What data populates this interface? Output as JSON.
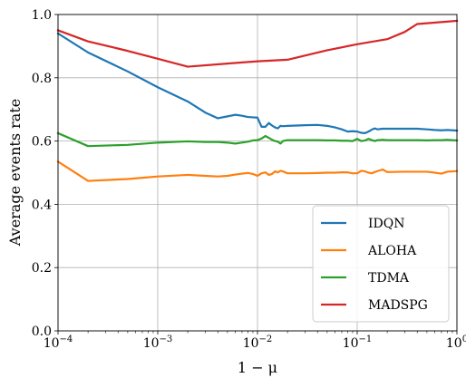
{
  "chart_data": {
    "type": "line",
    "xlabel": "1 − μ",
    "ylabel": "Average events rate",
    "xscale": "log",
    "xlim": [
      0.0001,
      1
    ],
    "ylim": [
      0.0,
      1.0
    ],
    "grid": true,
    "legend_position": "lower-right",
    "x_ticks": [
      {
        "value": 0.0001,
        "base": "10",
        "exp": "−4"
      },
      {
        "value": 0.001,
        "base": "10",
        "exp": "−3"
      },
      {
        "value": 0.01,
        "base": "10",
        "exp": "−2"
      },
      {
        "value": 0.1,
        "base": "10",
        "exp": "−1"
      },
      {
        "value": 1,
        "base": "10",
        "exp": "0"
      }
    ],
    "y_ticks": [
      {
        "value": 0.0,
        "label": "0.0"
      },
      {
        "value": 0.2,
        "label": "0.2"
      },
      {
        "value": 0.4,
        "label": "0.4"
      },
      {
        "value": 0.6,
        "label": "0.6"
      },
      {
        "value": 0.8,
        "label": "0.8"
      },
      {
        "value": 1.0,
        "label": "1.0"
      }
    ],
    "series": [
      {
        "name": "IDQN",
        "color": "#1f77b4",
        "x": [
          0.0001,
          0.0002,
          0.0005,
          0.001,
          0.002,
          0.003,
          0.004,
          0.005,
          0.006,
          0.007,
          0.008,
          0.009,
          0.01,
          0.011,
          0.012,
          0.013,
          0.014,
          0.015,
          0.016,
          0.017,
          0.018,
          0.02,
          0.03,
          0.04,
          0.05,
          0.06,
          0.07,
          0.08,
          0.09,
          0.1,
          0.11,
          0.12,
          0.13,
          0.14,
          0.15,
          0.16,
          0.18,
          0.2,
          0.3,
          0.4,
          0.5,
          0.6,
          0.7,
          0.8,
          1.0
        ],
        "y": [
          0.94,
          0.88,
          0.82,
          0.77,
          0.725,
          0.69,
          0.672,
          0.678,
          0.683,
          0.68,
          0.676,
          0.675,
          0.674,
          0.645,
          0.645,
          0.657,
          0.649,
          0.643,
          0.64,
          0.648,
          0.647,
          0.648,
          0.65,
          0.651,
          0.648,
          0.643,
          0.637,
          0.63,
          0.631,
          0.63,
          0.626,
          0.625,
          0.63,
          0.636,
          0.64,
          0.637,
          0.639,
          0.639,
          0.639,
          0.639,
          0.637,
          0.635,
          0.634,
          0.635,
          0.633
        ]
      },
      {
        "name": "ALOHA",
        "color": "#ff7f0e",
        "x": [
          0.0001,
          0.0002,
          0.0005,
          0.001,
          0.002,
          0.003,
          0.004,
          0.005,
          0.006,
          0.007,
          0.008,
          0.009,
          0.01,
          0.011,
          0.012,
          0.013,
          0.014,
          0.015,
          0.016,
          0.017,
          0.018,
          0.02,
          0.03,
          0.04,
          0.05,
          0.06,
          0.07,
          0.08,
          0.09,
          0.1,
          0.11,
          0.12,
          0.13,
          0.14,
          0.15,
          0.16,
          0.18,
          0.2,
          0.3,
          0.4,
          0.5,
          0.6,
          0.7,
          0.8,
          1.0
        ],
        "y": [
          0.535,
          0.474,
          0.48,
          0.488,
          0.493,
          0.49,
          0.488,
          0.49,
          0.494,
          0.497,
          0.499,
          0.496,
          0.49,
          0.498,
          0.501,
          0.493,
          0.496,
          0.504,
          0.501,
          0.506,
          0.504,
          0.498,
          0.498,
          0.499,
          0.5,
          0.5,
          0.501,
          0.501,
          0.498,
          0.498,
          0.506,
          0.504,
          0.5,
          0.498,
          0.502,
          0.505,
          0.51,
          0.502,
          0.503,
          0.503,
          0.503,
          0.5,
          0.497,
          0.503,
          0.505
        ]
      },
      {
        "name": "TDMA",
        "color": "#2ca02c",
        "x": [
          0.0001,
          0.0002,
          0.0005,
          0.001,
          0.002,
          0.003,
          0.004,
          0.005,
          0.006,
          0.007,
          0.008,
          0.009,
          0.01,
          0.011,
          0.012,
          0.013,
          0.014,
          0.015,
          0.016,
          0.017,
          0.018,
          0.02,
          0.03,
          0.04,
          0.05,
          0.06,
          0.07,
          0.08,
          0.09,
          0.1,
          0.11,
          0.12,
          0.13,
          0.14,
          0.15,
          0.16,
          0.18,
          0.2,
          0.3,
          0.4,
          0.5,
          0.6,
          0.7,
          0.8,
          1.0
        ],
        "y": [
          0.625,
          0.584,
          0.588,
          0.595,
          0.599,
          0.597,
          0.597,
          0.595,
          0.592,
          0.595,
          0.598,
          0.602,
          0.603,
          0.608,
          0.616,
          0.61,
          0.604,
          0.6,
          0.598,
          0.592,
          0.6,
          0.603,
          0.603,
          0.603,
          0.602,
          0.602,
          0.601,
          0.601,
          0.6,
          0.607,
          0.6,
          0.602,
          0.607,
          0.603,
          0.6,
          0.603,
          0.604,
          0.603,
          0.603,
          0.603,
          0.602,
          0.603,
          0.603,
          0.604,
          0.602
        ]
      },
      {
        "name": "MADSPG",
        "color": "#d62728",
        "x": [
          0.0001,
          0.0002,
          0.0005,
          0.001,
          0.002,
          0.005,
          0.01,
          0.02,
          0.05,
          0.1,
          0.2,
          0.3,
          0.4,
          1.0
        ],
        "y": [
          0.95,
          0.915,
          0.885,
          0.86,
          0.835,
          0.845,
          0.852,
          0.857,
          0.887,
          0.906,
          0.922,
          0.945,
          0.97,
          0.98
        ]
      }
    ]
  }
}
